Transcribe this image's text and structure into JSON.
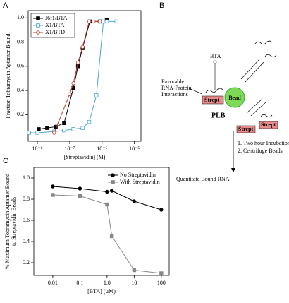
{
  "panel_labels": [
    "A",
    "B",
    "C"
  ],
  "chart_data": [
    {
      "type": "line",
      "xscale": "log",
      "xlabel": "[Streptavidin] (M)",
      "ylabel": [
        "Fraction Tobramycin Aptamer Bound"
      ],
      "xlim": [
        5.2e-09,
        1.6e-05
      ],
      "ylim": [
        -0.02,
        1.06
      ],
      "xticks": [
        {
          "value": 1e-08,
          "label": "10⁻⁸"
        },
        {
          "value": 1e-07,
          "label": "10⁻⁷"
        },
        {
          "value": 1e-06,
          "label": "10⁻⁶"
        },
        {
          "value": 1e-05,
          "label": "10⁻⁵"
        }
      ],
      "yticks": [
        0.2,
        0.4,
        0.6,
        0.8,
        {
          "value": 1,
          "label": "1.0"
        }
      ],
      "legend": "upper left",
      "legend_frame": true,
      "series": [
        {
          "name": "J6f1/BTA",
          "color": "#000000",
          "marker": "square",
          "filled": true,
          "x": [
            1.1e-08,
            2e-08,
            3.7e-08,
            6.7e-08,
            1.3e-07,
            1.8e-07,
            2.5e-07,
            4.2e-07,
            8.5e-07,
            1.4e-06
          ],
          "values": [
            0.08,
            0.09,
            0.1,
            0.13,
            0.42,
            0.6,
            0.75,
            0.97,
            0.97,
            0.98
          ]
        },
        {
          "name": "X1/BTA",
          "color": "#4fa6d8",
          "marker": "square",
          "filled": false,
          "x": [
            5.5e-09,
            1e-08,
            3.3e-08,
            6.7e-08,
            1.3e-07,
            2.5e-07,
            4e-07,
            6.7e-07,
            1.1e-06,
            1.4e-06,
            2.8e-06
          ],
          "values": [
            0.05,
            0.05,
            0.06,
            0.07,
            0.08,
            0.09,
            0.14,
            0.36,
            0.97,
            0.97,
            0.97
          ]
        },
        {
          "name": "X1/BTD",
          "color": "#c0392b",
          "marker": "circle",
          "filled": false,
          "x": [
            3.3e-08,
            1e-07,
            1.3e-07,
            1.8e-07,
            2.5e-07,
            4e-07,
            5.5e-07,
            8.5e-07
          ],
          "values": [
            0.05,
            0.37,
            0.46,
            0.63,
            0.76,
            0.97,
            0.97,
            0.97
          ]
        }
      ]
    },
    {
      "type": "line",
      "xscale": "log",
      "xlabel": "[BTA] (µM)",
      "ylabel": [
        "% Maximum Tobramycin Aptamer Bound",
        "to Streptavidin Beads"
      ],
      "xlim": [
        0.002,
        195
      ],
      "ylim": [
        0.08,
        1.1
      ],
      "xticks": [
        0.01,
        0.1,
        {
          "value": 1,
          "label": "1.0"
        },
        10,
        100
      ],
      "yticks": [
        0.2,
        0.4,
        0.6,
        0.8,
        {
          "value": 1,
          "label": "1.0"
        }
      ],
      "legend": "upper right",
      "legend_frame": false,
      "series": [
        {
          "name": "No Streptavidin",
          "color": "#000000",
          "marker": "circle",
          "filled": true,
          "x": [
            0.01,
            0.1,
            1,
            1.5,
            10,
            100
          ],
          "values": [
            0.92,
            0.9,
            0.87,
            0.88,
            0.78,
            0.7
          ]
        },
        {
          "name": "With Streptavidin",
          "color": "#888888",
          "marker": "square",
          "filled": true,
          "x": [
            0.01,
            0.1,
            1,
            1.5,
            10,
            100
          ],
          "values": [
            0.84,
            0.83,
            0.75,
            0.45,
            0.13,
            0.1
          ]
        }
      ]
    }
  ],
  "diagram": {
    "favorable": [
      "Favorable",
      "RNA-Protein",
      "Interactions"
    ],
    "bta": "BTA",
    "strept": "Strept",
    "bead": "Bead",
    "plb": "PLB",
    "steps": [
      "1. Two hour Incubation",
      "2. Centrifuge Beads"
    ],
    "result": "Quantitate Bound RNA"
  }
}
